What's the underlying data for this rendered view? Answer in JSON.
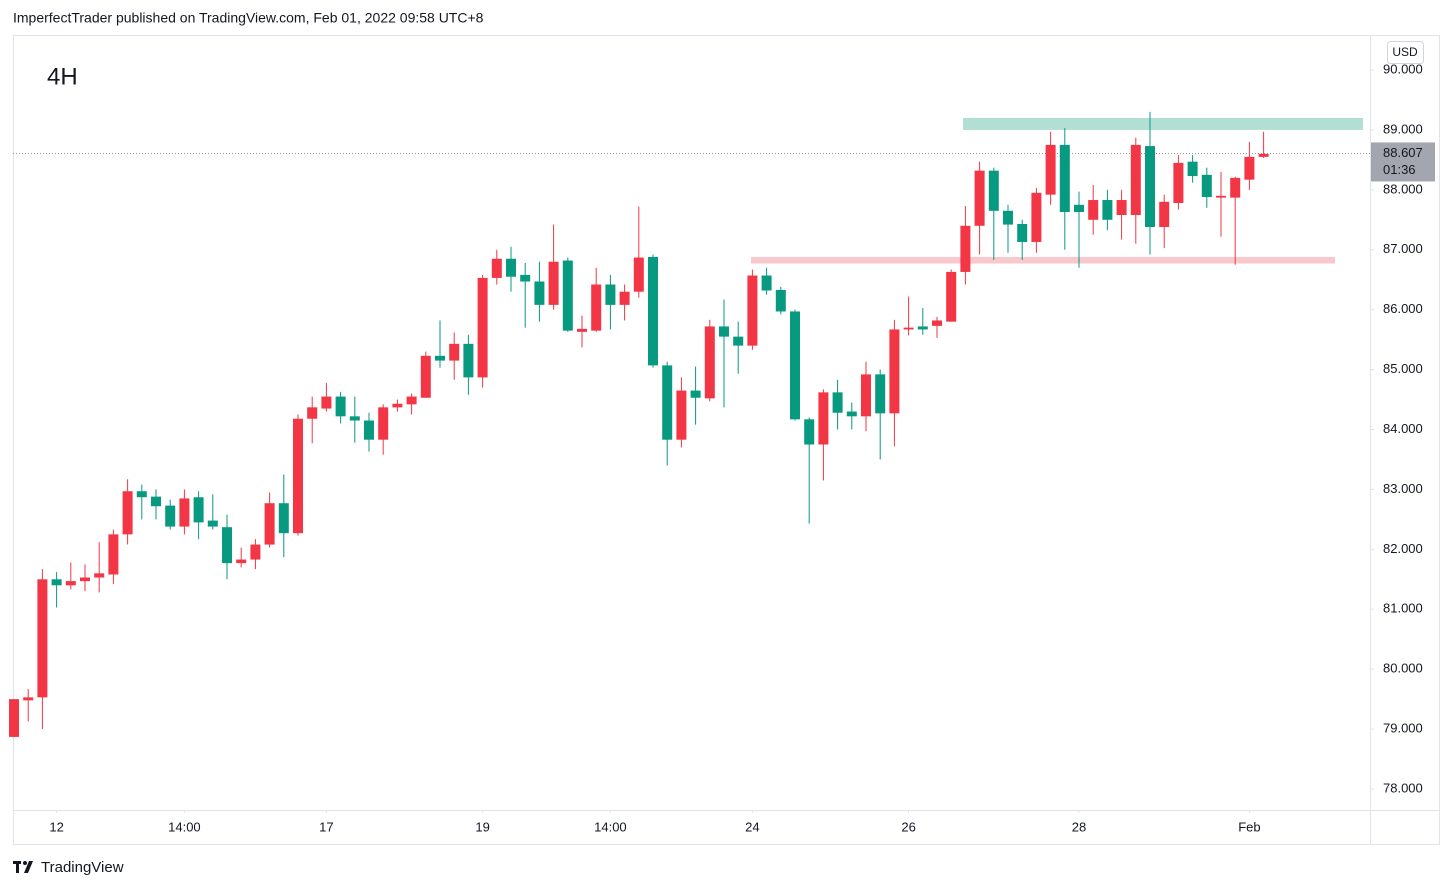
{
  "header": {
    "publisher": "ImperfectTrader published on TradingView.com, Feb 01, 2022 09:58 UTC+8"
  },
  "footer": {
    "brand": "TradingView"
  },
  "chart_data": {
    "type": "candlestick",
    "title": "4H",
    "currency": "USD",
    "categories": [
      null,
      null,
      null,
      "12",
      null,
      null,
      null,
      null,
      null,
      null,
      null,
      null,
      "14:00",
      null,
      null,
      null,
      null,
      null,
      null,
      null,
      null,
      null,
      "17",
      null,
      null,
      null,
      null,
      null,
      null,
      null,
      null,
      null,
      null,
      "19",
      null,
      null,
      null,
      null,
      null,
      null,
      null,
      null,
      "14:00",
      null,
      null,
      null,
      null,
      null,
      null,
      null,
      null,
      null,
      "24",
      null,
      null,
      null,
      null,
      null,
      null,
      null,
      null,
      null,
      null,
      "26",
      null,
      null,
      null,
      null,
      null,
      null,
      null,
      null,
      null,
      null,
      null,
      "28",
      null,
      null,
      null,
      null,
      null,
      null,
      null,
      null,
      null,
      null,
      null,
      "Feb",
      null
    ],
    "open": [
      78.87,
      79.48,
      79.53,
      81.5,
      81.4,
      81.47,
      81.53,
      81.58,
      82.25,
      82.97,
      82.88,
      82.73,
      82.38,
      82.87,
      82.48,
      82.37,
      81.77,
      81.83,
      82.08,
      82.77,
      82.27,
      84.18,
      84.35,
      84.55,
      84.22,
      84.15,
      83.83,
      84.37,
      84.42,
      84.53,
      85.23,
      85.15,
      85.43,
      84.87,
      86.53,
      86.85,
      86.58,
      86.47,
      86.08,
      86.82,
      85.63,
      85.65,
      86.42,
      86.08,
      86.3,
      86.88,
      85.07,
      83.83,
      84.65,
      84.52,
      85.72,
      85.55,
      85.4,
      86.57,
      86.33,
      85.97,
      84.17,
      83.75,
      84.62,
      84.3,
      84.22,
      84.92,
      84.27,
      85.67,
      85.72,
      85.73,
      85.8,
      86.63,
      87.4,
      88.32,
      87.65,
      87.43,
      87.13,
      87.92,
      88.75,
      87.75,
      87.5,
      87.83,
      87.58,
      87.58,
      88.73,
      87.38,
      87.78,
      88.47,
      88.25,
      87.87,
      87.87,
      88.17,
      88.55
    ],
    "high": [
      79.5,
      79.67,
      81.67,
      81.62,
      81.78,
      81.75,
      82.12,
      82.33,
      83.17,
      83.08,
      83.0,
      82.83,
      83.0,
      82.97,
      82.92,
      82.58,
      82.03,
      82.17,
      82.95,
      83.25,
      84.25,
      84.55,
      84.78,
      84.63,
      84.55,
      84.28,
      84.42,
      84.5,
      84.6,
      85.3,
      85.82,
      85.62,
      85.58,
      86.58,
      87.0,
      87.05,
      86.78,
      86.8,
      87.42,
      86.87,
      85.9,
      86.7,
      86.58,
      86.42,
      87.72,
      86.92,
      85.13,
      84.87,
      85.05,
      85.83,
      86.17,
      85.8,
      86.67,
      86.7,
      86.38,
      86.0,
      84.2,
      84.67,
      84.83,
      84.45,
      85.13,
      85.0,
      85.83,
      86.22,
      86.03,
      85.88,
      86.67,
      87.73,
      88.47,
      88.37,
      87.75,
      87.5,
      88.03,
      88.97,
      89.03,
      87.97,
      88.08,
      88.0,
      88.0,
      88.87,
      89.3,
      87.92,
      88.58,
      88.58,
      88.37,
      88.3,
      88.22,
      88.8,
      88.97
    ],
    "low": [
      78.87,
      79.13,
      79.0,
      81.03,
      81.33,
      81.3,
      81.28,
      81.42,
      82.08,
      82.5,
      82.5,
      82.33,
      82.25,
      82.17,
      82.33,
      81.5,
      81.7,
      81.67,
      82.03,
      81.87,
      82.23,
      83.77,
      84.3,
      84.1,
      83.78,
      83.63,
      83.58,
      84.3,
      84.25,
      84.53,
      85.03,
      84.83,
      84.58,
      84.7,
      86.42,
      86.3,
      85.7,
      85.8,
      86.0,
      85.63,
      85.37,
      85.63,
      85.67,
      85.82,
      86.2,
      85.03,
      83.4,
      83.7,
      84.08,
      84.47,
      84.37,
      84.93,
      85.33,
      86.25,
      85.92,
      84.15,
      82.43,
      83.15,
      84.0,
      84.0,
      83.97,
      83.5,
      83.72,
      85.57,
      85.58,
      85.53,
      85.8,
      86.42,
      86.92,
      86.83,
      86.95,
      86.83,
      86.95,
      87.75,
      87.0,
      86.7,
      87.25,
      87.33,
      87.17,
      87.1,
      86.92,
      87.03,
      87.67,
      88.12,
      87.7,
      87.22,
      86.75,
      88.0,
      88.53
    ],
    "close": [
      79.5,
      79.53,
      81.5,
      81.4,
      81.47,
      81.53,
      81.6,
      82.25,
      82.97,
      82.87,
      82.72,
      82.38,
      82.85,
      82.45,
      82.38,
      81.77,
      81.83,
      82.08,
      82.77,
      82.27,
      84.18,
      84.37,
      84.55,
      84.22,
      84.15,
      83.83,
      84.37,
      84.43,
      84.55,
      85.23,
      85.15,
      85.43,
      84.87,
      86.53,
      86.85,
      86.55,
      86.47,
      86.08,
      86.8,
      85.65,
      85.68,
      86.42,
      86.08,
      86.3,
      86.87,
      85.07,
      83.83,
      84.65,
      84.53,
      85.72,
      85.55,
      85.4,
      86.57,
      86.32,
      85.97,
      84.17,
      83.75,
      84.62,
      84.28,
      84.22,
      84.92,
      84.27,
      85.67,
      85.7,
      85.67,
      85.82,
      86.63,
      87.4,
      88.32,
      87.65,
      87.42,
      87.13,
      87.95,
      88.75,
      87.63,
      87.63,
      87.83,
      87.5,
      87.83,
      88.75,
      87.38,
      87.8,
      88.45,
      88.23,
      87.88,
      87.9,
      88.2,
      88.55,
      88.6
    ],
    "up_color": "#f23645",
    "down_color": "#089981",
    "ylim": [
      77.65,
      90.584
    ],
    "yticks": [
      {
        "value": 78,
        "label": "78.000"
      },
      {
        "value": 79,
        "label": "79.000"
      },
      {
        "value": 80,
        "label": "80.000"
      },
      {
        "value": 81,
        "label": "81.000"
      },
      {
        "value": 82,
        "label": "82.000"
      },
      {
        "value": 83,
        "label": "83.000"
      },
      {
        "value": 84,
        "label": "84.000"
      },
      {
        "value": 85,
        "label": "85.000"
      },
      {
        "value": 86,
        "label": "86.000"
      },
      {
        "value": 87,
        "label": "87.000"
      },
      {
        "value": 88,
        "label": "88.000"
      },
      {
        "value": 89,
        "label": "89.000"
      },
      {
        "value": 90,
        "label": "90.000"
      }
    ],
    "last_price": 88.607,
    "countdown": "01:36",
    "zones": [
      {
        "low": 89.0,
        "high": 89.2,
        "color": "#b2dfd3"
      },
      {
        "low": 86.77,
        "high": 86.88,
        "color": "#f8c8cd"
      }
    ]
  }
}
